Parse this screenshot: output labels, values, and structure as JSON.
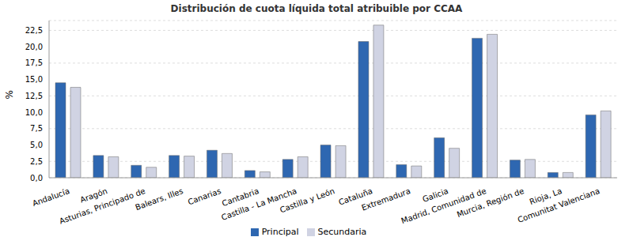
{
  "chart_data": {
    "type": "bar",
    "title": "Distribución de cuota líquida total atribuible por CCAA",
    "y_label": "%",
    "categories": [
      "Andalucía",
      "Aragón",
      "Asturias, Principado de",
      "Balears, Illes",
      "Canarias",
      "Cantabria",
      "Castilla - La Mancha",
      "Castilla y León",
      "Cataluña",
      "Extremadura",
      "Galicia",
      "Madrid, Comunidad de",
      "Murcia, Región de",
      "Rioja, La",
      "Comunitat Valenciana"
    ],
    "series": [
      {
        "name": "Principal",
        "color": "#2e67b1",
        "values": [
          14.5,
          3.4,
          1.9,
          3.4,
          4.2,
          1.1,
          2.8,
          5.0,
          20.8,
          2.0,
          6.1,
          21.3,
          2.7,
          0.8,
          9.6
        ]
      },
      {
        "name": "Secundaria",
        "color": "#d0d3e3",
        "values": [
          13.8,
          3.2,
          1.6,
          3.3,
          3.7,
          0.9,
          3.2,
          4.9,
          23.3,
          1.8,
          4.5,
          21.9,
          2.8,
          0.8,
          10.2
        ]
      }
    ],
    "ylim": [
      0,
      24
    ],
    "yticks": [
      {
        "value": 0,
        "label": "0,0"
      },
      {
        "value": 2.5,
        "label": "2,5"
      },
      {
        "value": 5,
        "label": "5,0"
      },
      {
        "value": 7.5,
        "label": "7,5"
      },
      {
        "value": 10,
        "label": "10,0"
      },
      {
        "value": 12.5,
        "label": "12,5"
      },
      {
        "value": 15,
        "label": "15,0"
      },
      {
        "value": 17.5,
        "label": "17,5"
      },
      {
        "value": 20,
        "label": "20,0"
      },
      {
        "value": 22.5,
        "label": "22,5"
      }
    ],
    "grid": true,
    "legend": "bottom"
  }
}
